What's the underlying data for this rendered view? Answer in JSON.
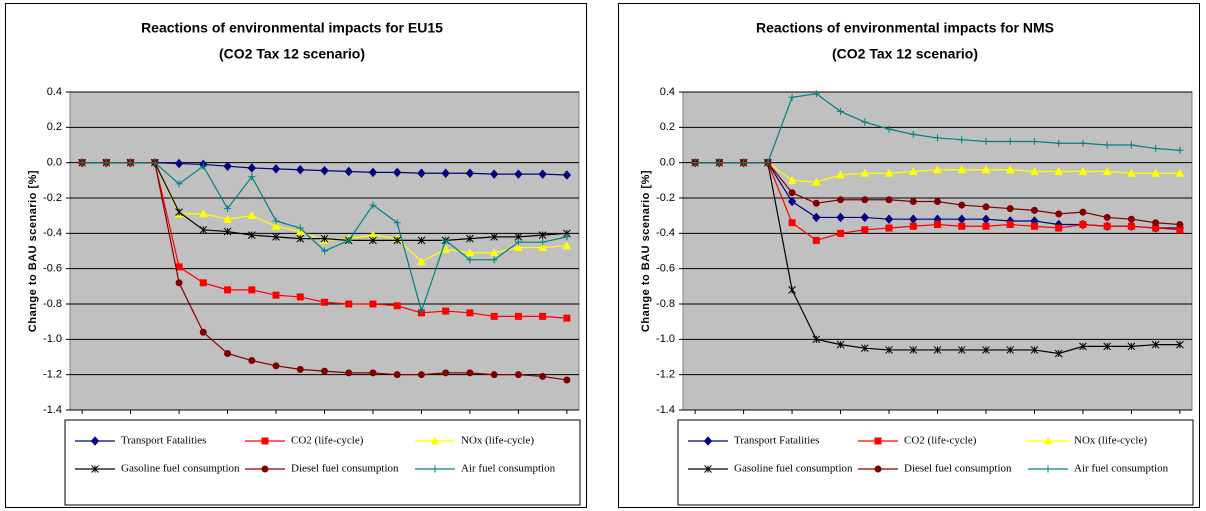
{
  "chart_data": [
    {
      "type": "line",
      "title": "Reactions of environmental impacts for EU15",
      "subtitle": "(CO2 Tax 12 scenario)",
      "y_label": "Change to BAU scenario [%]",
      "x": [
        2000,
        2001,
        2002,
        2003,
        2004,
        2005,
        2006,
        2007,
        2008,
        2009,
        2010,
        2011,
        2012,
        2013,
        2014,
        2015,
        2016,
        2017,
        2018,
        2019,
        2020
      ],
      "xlim": [
        1999.5,
        2020.5
      ],
      "xticks": [
        2000,
        2002,
        2004,
        2006,
        2008,
        2010,
        2012,
        2014,
        2016,
        2018,
        2020
      ],
      "ylim": [
        -1.4,
        0.4
      ],
      "yticks": [
        0.4,
        0.2,
        {
          "value": 0,
          "label": "0.0"
        },
        -0.2,
        -0.4,
        -0.6,
        -0.8,
        {
          "value": -1,
          "label": "-1.0"
        },
        -1.2,
        -1.4
      ],
      "grid": true,
      "series": [
        {
          "name": "Transport Fatalities",
          "color": "#000080",
          "marker": "diamond",
          "values": [
            0,
            0,
            0,
            0,
            -0.005,
            -0.01,
            -0.02,
            -0.03,
            -0.035,
            -0.04,
            -0.045,
            -0.05,
            -0.055,
            -0.055,
            -0.06,
            -0.06,
            -0.06,
            -0.065,
            -0.065,
            -0.065,
            -0.07
          ]
        },
        {
          "name": "CO2 (life-cycle)",
          "color": "#ff0000",
          "marker": "square",
          "values": [
            0,
            0,
            0,
            0,
            -0.59,
            -0.68,
            -0.72,
            -0.72,
            -0.75,
            -0.76,
            -0.79,
            -0.8,
            -0.8,
            -0.81,
            -0.85,
            -0.84,
            -0.85,
            -0.87,
            -0.87,
            -0.87,
            -0.88
          ]
        },
        {
          "name": "NOx (life-cycle)",
          "color": "#ffff00",
          "marker": "triangle",
          "values": [
            0,
            0,
            0,
            0,
            -0.29,
            -0.29,
            -0.32,
            -0.3,
            -0.36,
            -0.39,
            -0.44,
            -0.43,
            -0.41,
            -0.43,
            -0.56,
            -0.49,
            -0.51,
            -0.51,
            -0.48,
            -0.48,
            -0.47
          ]
        },
        {
          "name": "Gasoline fuel consumption",
          "color": "#000000",
          "marker": "star",
          "values": [
            0,
            0,
            0,
            0,
            -0.28,
            -0.38,
            -0.39,
            -0.41,
            -0.42,
            -0.43,
            -0.43,
            -0.44,
            -0.44,
            -0.44,
            -0.44,
            -0.44,
            -0.43,
            -0.42,
            -0.42,
            -0.41,
            -0.4
          ]
        },
        {
          "name": "Diesel fuel consumption",
          "color": "#800000",
          "marker": "circle",
          "values": [
            0,
            0,
            0,
            0,
            -0.68,
            -0.96,
            -1.08,
            -1.12,
            -1.15,
            -1.17,
            -1.18,
            -1.19,
            -1.19,
            -1.2,
            -1.2,
            -1.19,
            -1.19,
            -1.2,
            -1.2,
            -1.21,
            -1.23
          ]
        },
        {
          "name": "Air fuel consumption",
          "color": "#008080",
          "marker": "plus",
          "values": [
            0,
            0,
            0,
            0,
            -0.12,
            -0.02,
            -0.26,
            -0.08,
            -0.33,
            -0.37,
            -0.5,
            -0.44,
            -0.24,
            -0.34,
            -0.84,
            -0.44,
            -0.55,
            -0.55,
            -0.45,
            -0.45,
            -0.42
          ]
        }
      ]
    },
    {
      "type": "line",
      "title": "Reactions of environmental impacts for NMS",
      "subtitle": "(CO2 Tax 12 scenario)",
      "y_label": "Change to BAU scenario [%]",
      "x": [
        2000,
        2001,
        2002,
        2003,
        2004,
        2005,
        2006,
        2007,
        2008,
        2009,
        2010,
        2011,
        2012,
        2013,
        2014,
        2015,
        2016,
        2017,
        2018,
        2019,
        2020
      ],
      "xlim": [
        1999.5,
        2020.5
      ],
      "xticks": [
        2000,
        2002,
        2004,
        2006,
        2008,
        2010,
        2012,
        2014,
        2016,
        2018,
        2020
      ],
      "ylim": [
        -1.4,
        0.4
      ],
      "yticks": [
        0.4,
        0.2,
        {
          "value": 0,
          "label": "0.0"
        },
        -0.2,
        -0.4,
        -0.6,
        -0.8,
        {
          "value": -1,
          "label": "-1.0"
        },
        -1.2,
        -1.4
      ],
      "grid": true,
      "series": [
        {
          "name": "Transport Fatalities",
          "color": "#000080",
          "marker": "diamond",
          "values": [
            0,
            0,
            0,
            0,
            -0.22,
            -0.31,
            -0.31,
            -0.31,
            -0.32,
            -0.32,
            -0.32,
            -0.32,
            -0.32,
            -0.33,
            -0.33,
            -0.35,
            -0.35,
            -0.36,
            -0.36,
            -0.37,
            -0.37
          ]
        },
        {
          "name": "CO2 (life-cycle)",
          "color": "#ff0000",
          "marker": "square",
          "values": [
            0,
            0,
            0,
            0,
            -0.34,
            -0.44,
            -0.4,
            -0.38,
            -0.37,
            -0.36,
            -0.35,
            -0.36,
            -0.36,
            -0.35,
            -0.36,
            -0.37,
            -0.35,
            -0.36,
            -0.36,
            -0.37,
            -0.38
          ]
        },
        {
          "name": "NOx (life-cycle)",
          "color": "#ffff00",
          "marker": "triangle",
          "values": [
            0,
            0,
            0,
            0,
            -0.1,
            -0.11,
            -0.07,
            -0.06,
            -0.06,
            -0.05,
            -0.04,
            -0.04,
            -0.04,
            -0.04,
            -0.05,
            -0.05,
            -0.05,
            -0.05,
            -0.06,
            -0.06,
            -0.06
          ]
        },
        {
          "name": "Gasoline fuel consumption",
          "color": "#000000",
          "marker": "star",
          "values": [
            0,
            0,
            0,
            0,
            -0.72,
            -1,
            -1.03,
            -1.05,
            -1.06,
            -1.06,
            -1.06,
            -1.06,
            -1.06,
            -1.06,
            -1.06,
            -1.08,
            -1.04,
            -1.04,
            -1.04,
            -1.03,
            -1.03
          ]
        },
        {
          "name": "Diesel fuel consumption",
          "color": "#800000",
          "marker": "circle",
          "values": [
            0,
            0,
            0,
            0,
            -0.17,
            -0.23,
            -0.21,
            -0.21,
            -0.21,
            -0.22,
            -0.22,
            -0.24,
            -0.25,
            -0.26,
            -0.27,
            -0.29,
            -0.28,
            -0.31,
            -0.32,
            -0.34,
            -0.35
          ]
        },
        {
          "name": "Air fuel consumption",
          "color": "#008080",
          "marker": "plus",
          "values": [
            0,
            0,
            0,
            0,
            0.37,
            0.39,
            0.29,
            0.23,
            0.19,
            0.16,
            0.14,
            0.13,
            0.12,
            0.12,
            0.12,
            0.11,
            0.11,
            0.1,
            0.1,
            0.08,
            0.07
          ]
        }
      ]
    }
  ]
}
